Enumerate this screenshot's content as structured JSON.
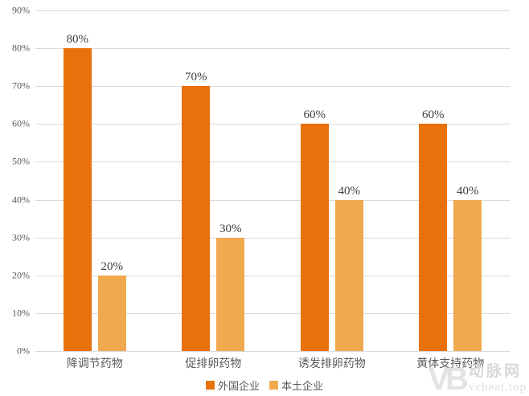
{
  "chart_data": {
    "type": "bar",
    "title": "",
    "xlabel": "",
    "ylabel": "",
    "categories": [
      "降调节药物",
      "促排卵药物",
      "诱发排卵药物",
      "黄体支持药物"
    ],
    "series": [
      {
        "name": "外国企业",
        "color": "#E8710C",
        "values": [
          80,
          70,
          60,
          60
        ]
      },
      {
        "name": "本土企业",
        "color": "#F0A94F",
        "values": [
          20,
          30,
          40,
          40
        ]
      }
    ],
    "data_labels": [
      "80%",
      "20%",
      "70%",
      "30%",
      "60%",
      "40%",
      "60%",
      "40%"
    ],
    "ylim": [
      0,
      90
    ],
    "ytick_step": 10,
    "ytick_labels": [
      "0%",
      "10%",
      "20%",
      "30%",
      "40%",
      "50%",
      "60%",
      "70%",
      "80%",
      "90%"
    ],
    "grid": true,
    "legend_position": "bottom"
  },
  "colors": {
    "grid": "#D9D9D9",
    "tick_label": "#595959",
    "data_label": "#3f3f3f",
    "category_label": "#595959",
    "legend_text": "#595959",
    "watermark": "#d9d9d9"
  },
  "watermark": {
    "logo_text": "VB",
    "brand": "动脉网",
    "site": "vcbeat.top"
  }
}
